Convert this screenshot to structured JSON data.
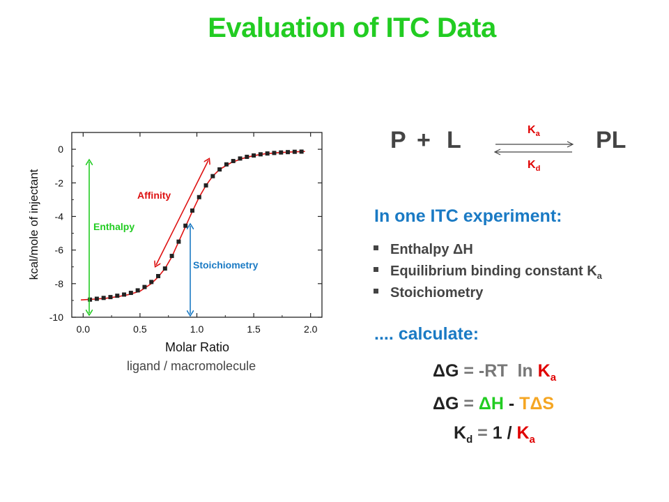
{
  "slide": {
    "title": "Evaluation of ITC Data",
    "caption": "ligand / macromolecule"
  },
  "reaction": {
    "left_p": "P",
    "plus": "+",
    "left_l": "L",
    "product": "PL",
    "ka_K": "K",
    "ka_sub": "a",
    "kd_K": "K",
    "kd_sub": "d"
  },
  "section1": {
    "heading": "In one ITC experiment:",
    "items": [
      {
        "text": "Enthalpy ΔH",
        "sub": ""
      },
      {
        "text": "Equilibrium binding constant K",
        "sub": "a"
      },
      {
        "text": "Stoichiometry",
        "sub": ""
      }
    ]
  },
  "section2": {
    "heading": ".... calculate:"
  },
  "formulas": {
    "f1": {
      "dG": "ΔG",
      "eq": " = ",
      "rhs": "-RT  ln ",
      "K": "K",
      "sub": "a"
    },
    "f2": {
      "dG": "ΔG",
      "eq": " = ",
      "dH": "ΔH",
      "minus": " - ",
      "TdS": "TΔS"
    },
    "f3": {
      "K": "K",
      "sub": "d",
      "eq": " = ",
      "one": "1",
      "slash": " / ",
      "K2": "K",
      "sub2": "a"
    }
  },
  "colors": {
    "title_green": "#22cc22",
    "heading_blue": "#1a7ac4",
    "accent_red": "#e00000",
    "enthalpy_green": "#22cc22",
    "affinity_red": "#dd1111",
    "stoich_blue": "#1a7ac4",
    "tds_orange": "#f5a623"
  },
  "chart_data": {
    "type": "scatter",
    "xlabel": "Molar Ratio",
    "ylabel": "kcal/mole of injectant",
    "xlim": [
      -0.1,
      2.1
    ],
    "ylim": [
      -10,
      1
    ],
    "xticks": [
      "0.0",
      "0.5",
      "1.0",
      "1.5",
      "2.0"
    ],
    "xtick_values": [
      0,
      0.5,
      1.0,
      1.5,
      2.0
    ],
    "yticks": [
      "0",
      "-2",
      "-4",
      "-6",
      "-8",
      "-10"
    ],
    "ytick_values": [
      0,
      -2,
      -4,
      -6,
      -8,
      -10
    ],
    "points": {
      "x": [
        0.06,
        0.12,
        0.18,
        0.24,
        0.3,
        0.36,
        0.42,
        0.48,
        0.54,
        0.6,
        0.66,
        0.72,
        0.78,
        0.84,
        0.9,
        0.96,
        1.02,
        1.08,
        1.14,
        1.2,
        1.26,
        1.32,
        1.38,
        1.44,
        1.5,
        1.56,
        1.62,
        1.68,
        1.74,
        1.8,
        1.86,
        1.92
      ],
      "y": [
        -8.95,
        -8.9,
        -8.85,
        -8.8,
        -8.72,
        -8.65,
        -8.55,
        -8.4,
        -8.2,
        -7.9,
        -7.55,
        -7.1,
        -6.35,
        -5.5,
        -4.55,
        -3.65,
        -2.85,
        -2.15,
        -1.6,
        -1.2,
        -0.9,
        -0.7,
        -0.55,
        -0.45,
        -0.37,
        -0.3,
        -0.25,
        -0.22,
        -0.19,
        -0.17,
        -0.15,
        -0.14
      ]
    },
    "fit_line": {
      "x": [
        -0.02,
        0.1,
        0.2,
        0.3,
        0.4,
        0.5,
        0.6,
        0.66,
        0.72,
        0.78,
        0.84,
        0.9,
        0.96,
        1.02,
        1.08,
        1.14,
        1.2,
        1.3,
        1.4,
        1.5,
        1.6,
        1.7,
        1.8,
        1.95
      ],
      "y": [
        -8.97,
        -8.92,
        -8.87,
        -8.78,
        -8.65,
        -8.45,
        -8.0,
        -7.6,
        -7.1,
        -6.4,
        -5.5,
        -4.6,
        -3.7,
        -2.85,
        -2.15,
        -1.6,
        -1.2,
        -0.8,
        -0.55,
        -0.38,
        -0.27,
        -0.21,
        -0.17,
        -0.13
      ]
    },
    "annotations": [
      {
        "text": "Enthalpy",
        "color": "#22cc22"
      },
      {
        "text": "Affinity",
        "color": "#dd1111"
      },
      {
        "text": "Stoichiometry",
        "color": "#1a7ac4"
      }
    ]
  }
}
